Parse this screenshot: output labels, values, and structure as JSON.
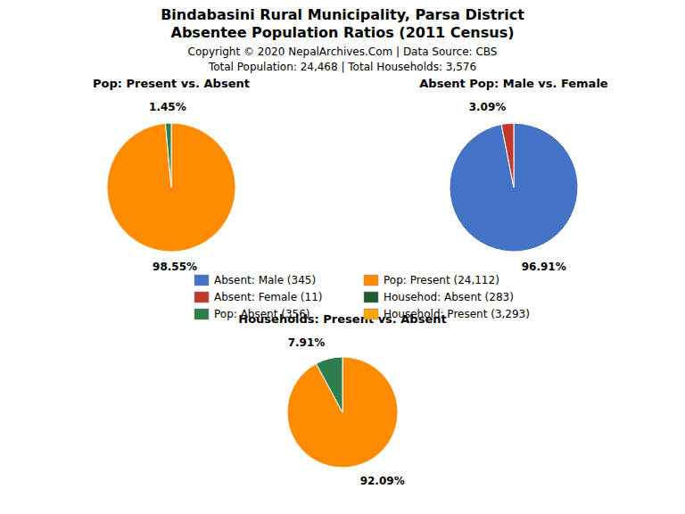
{
  "title": "Bindabasini Rural Municipality, Parsa District",
  "subtitle": "Absentee Population Ratios (2011 Census)",
  "annotations": [
    "Copyright © 2020 NepalArchives.Com | Data Source: CBS",
    "Total Population: 24,468 | Total Households: 3,576"
  ],
  "series": [
    {
      "name": "Absent: Male (345)",
      "color": "#4472C4"
    },
    {
      "name": "Absent: Female (11)",
      "color": "#C0392B"
    },
    {
      "name": "Pop: Absent (356)",
      "color": "#2E7D4F"
    },
    {
      "name": "Pop: Present (24,112)",
      "color": "#FF8C00"
    },
    {
      "name": "Househod: Absent (283)",
      "color": "#1E5C2E"
    },
    {
      "name": "Household: Present (3,293)",
      "color": "#FFA500"
    }
  ],
  "chart_data": [
    {
      "type": "pie",
      "title": "Pop: Present vs. Absent",
      "values": [
        98.55,
        1.45
      ],
      "value_labels": [
        "98.55%",
        "1.45%"
      ],
      "colors": [
        "#FF8C00",
        "#2E7D4F"
      ],
      "data_labels": true
    },
    {
      "type": "pie",
      "title": "Absent Pop: Male vs. Female",
      "values": [
        96.91,
        3.09
      ],
      "value_labels": [
        "96.91%",
        "3.09%"
      ],
      "colors": [
        "#4472C4",
        "#C0392B"
      ],
      "data_labels": true
    },
    {
      "type": "pie",
      "title": "Households: Present vs. Absent",
      "values": [
        92.09,
        7.91
      ],
      "value_labels": [
        "92.09%",
        "7.91%"
      ],
      "colors": [
        "#FF8C00",
        "#2E7D4F"
      ],
      "data_labels": true
    }
  ]
}
